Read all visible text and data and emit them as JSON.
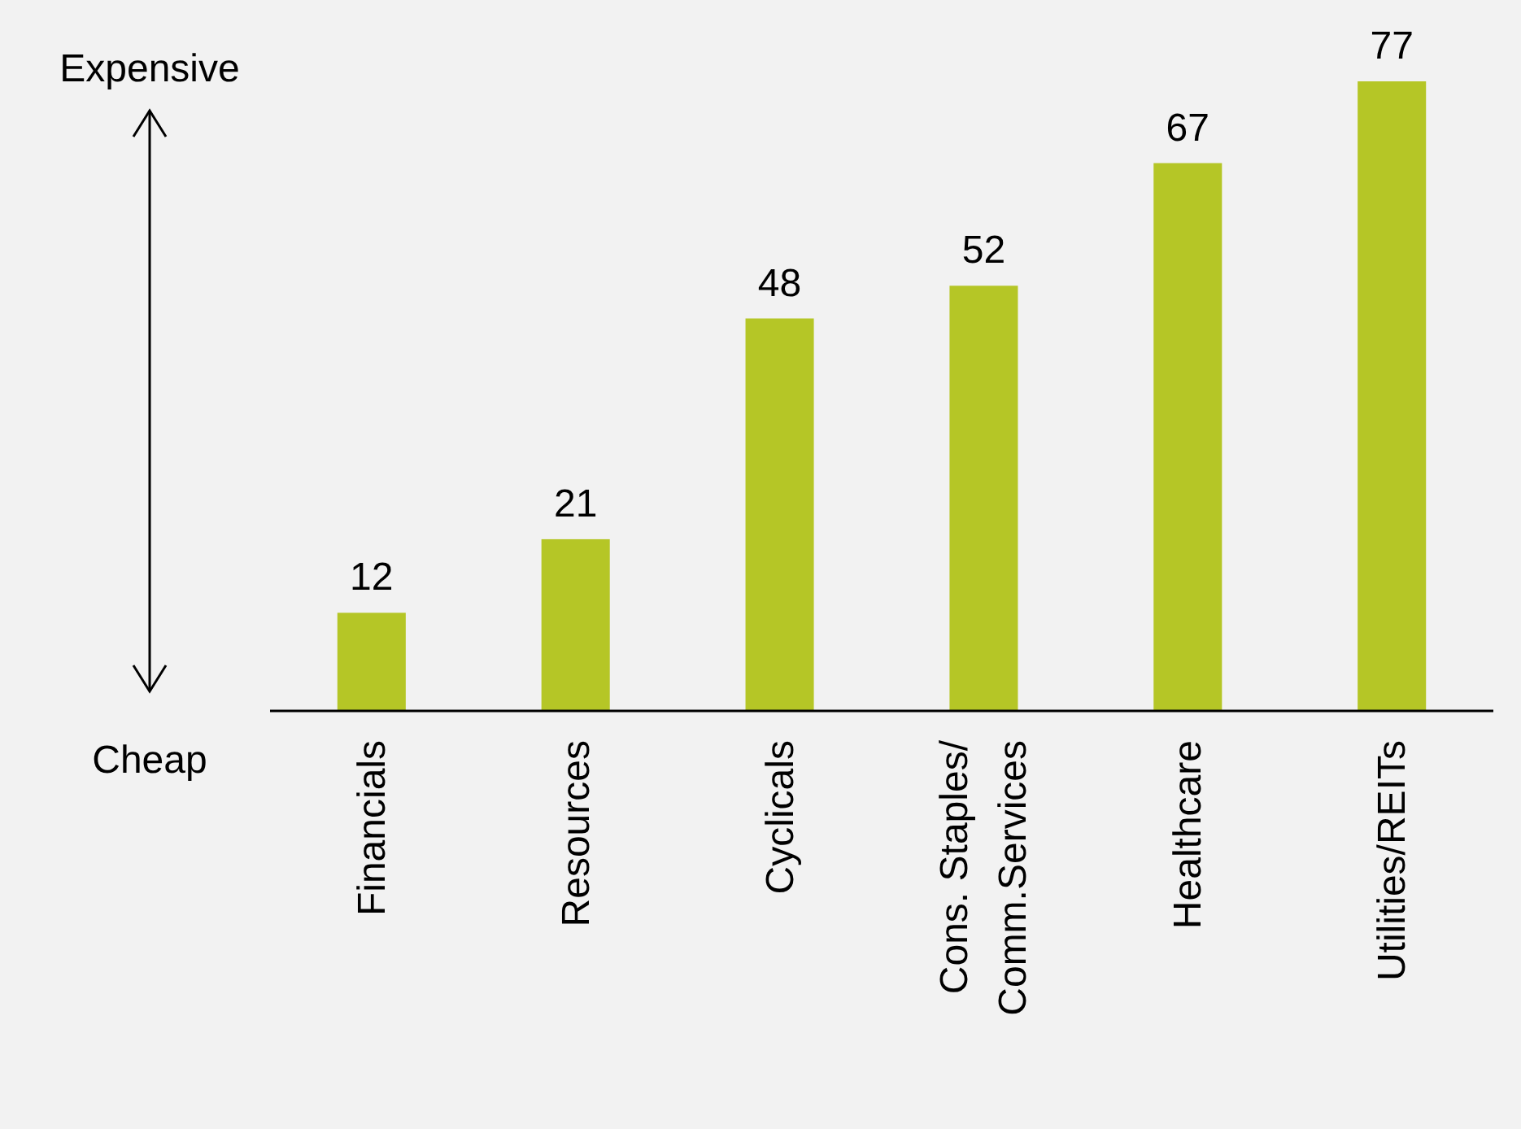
{
  "chart_data": {
    "type": "bar",
    "categories": [
      "Financials",
      "Resources",
      "Cyclicals",
      "Cons. Staples/\nComm.Services",
      "Healthcare",
      "Utilities/REITs"
    ],
    "values": [
      12,
      21,
      48,
      52,
      67,
      77
    ],
    "color": "#b5c626",
    "data_labels": true,
    "annotations": [
      "Expensive",
      "Cheap"
    ]
  }
}
